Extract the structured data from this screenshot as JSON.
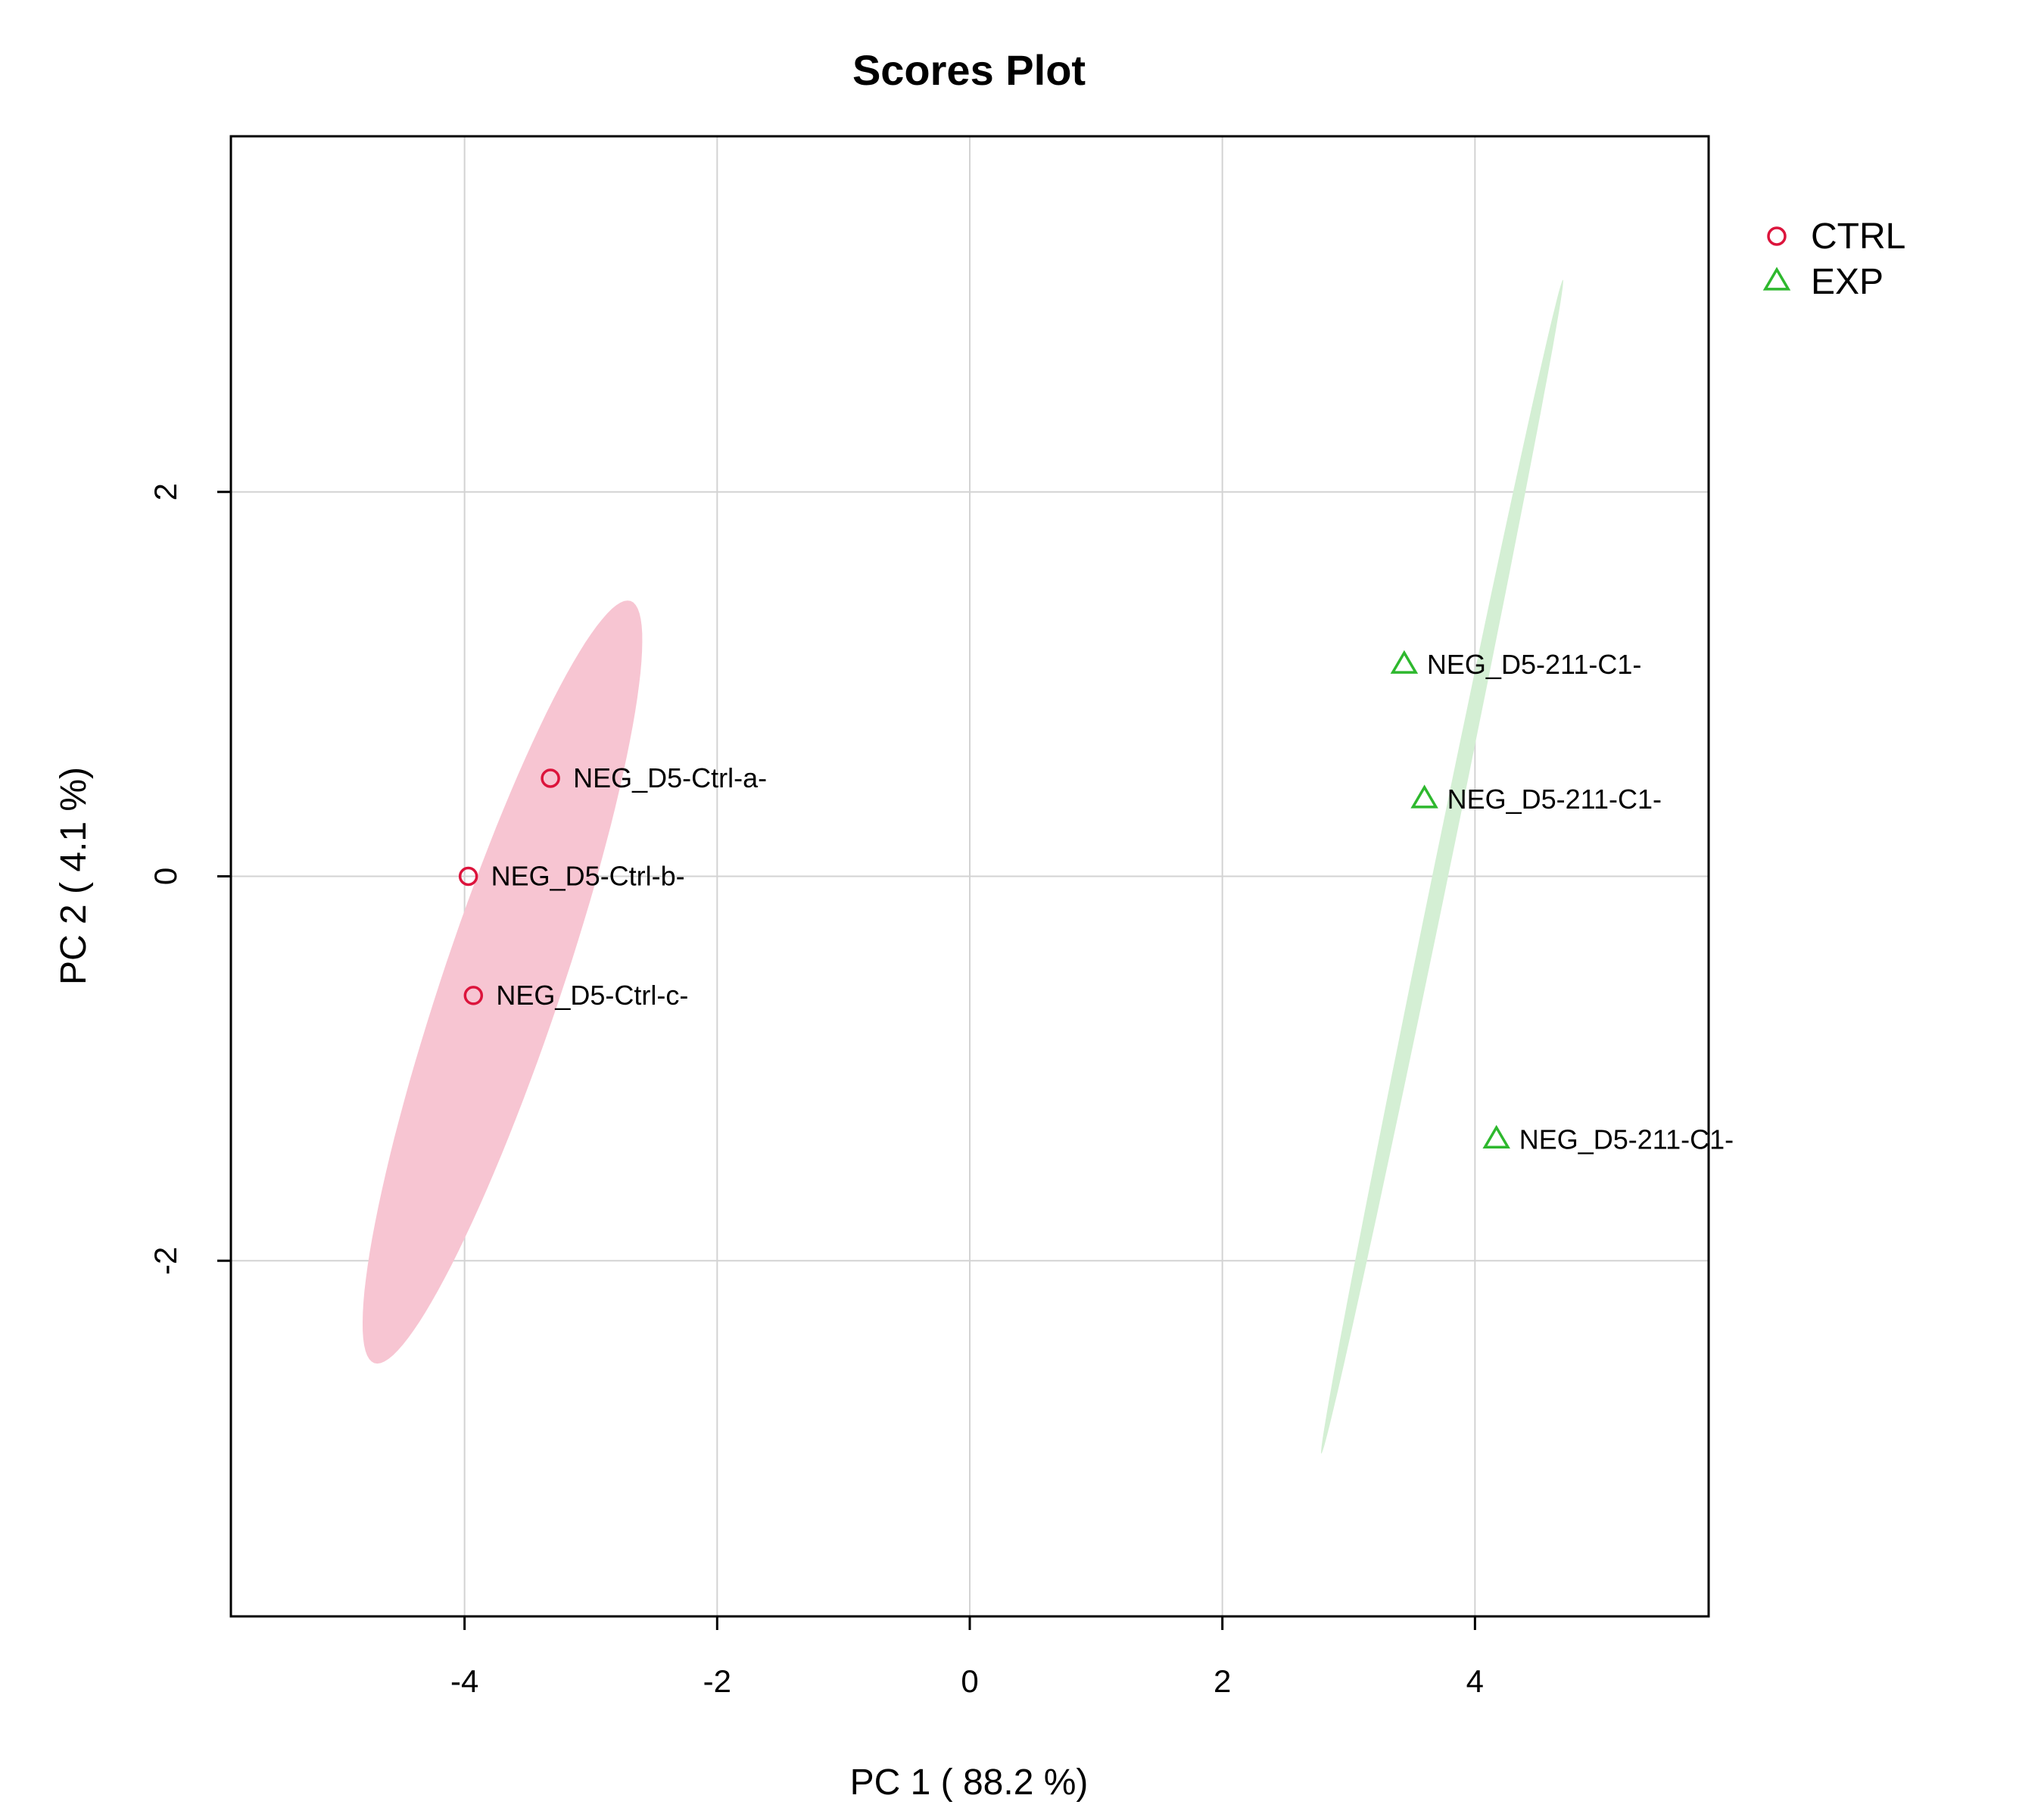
{
  "chart_data": {
    "type": "scatter",
    "title": "Scores Plot",
    "xlabel": "PC 1 ( 88.2 %)",
    "ylabel": "PC 2 ( 4.1 %)",
    "xlim": [
      -5.85,
      5.85
    ],
    "ylim": [
      -3.85,
      3.85
    ],
    "x_ticks": [
      -4,
      -2,
      0,
      2,
      4
    ],
    "y_ticks": [
      -2,
      0,
      2
    ],
    "grid": true,
    "legend_position": "right",
    "series": [
      {
        "name": "CTRL",
        "marker": "circle",
        "color": "#DC143C",
        "ellipse_color": "#F7C5D2",
        "ellipse": {
          "center": [
            -3.7,
            -0.55
          ],
          "semi_major": 2.23,
          "semi_minor": 0.44,
          "angle_deg": 62.3
        },
        "points": [
          {
            "x": -3.32,
            "y": 0.51,
            "label": "NEG_D5-Ctrl-a-"
          },
          {
            "x": -3.97,
            "y": 0.0,
            "label": "NEG_D5-Ctrl-b-"
          },
          {
            "x": -3.93,
            "y": -0.62,
            "label": "NEG_D5-Ctrl-c-"
          }
        ]
      },
      {
        "name": "EXP",
        "marker": "triangle",
        "color": "#2EB82E",
        "ellipse_color": "#D4EFD4",
        "ellipse": {
          "center": [
            3.74,
            0.05
          ],
          "semi_major": 3.2,
          "semi_minor": 0.06,
          "angle_deg": 72.6
        },
        "points": [
          {
            "x": 3.44,
            "y": 1.1,
            "label": "NEG_D5-211-C1-"
          },
          {
            "x": 3.6,
            "y": 0.4,
            "label": "NEG_D5-211-C1-"
          },
          {
            "x": 4.17,
            "y": -1.37,
            "label": "NEG_D5-211-C1-"
          }
        ]
      }
    ]
  }
}
